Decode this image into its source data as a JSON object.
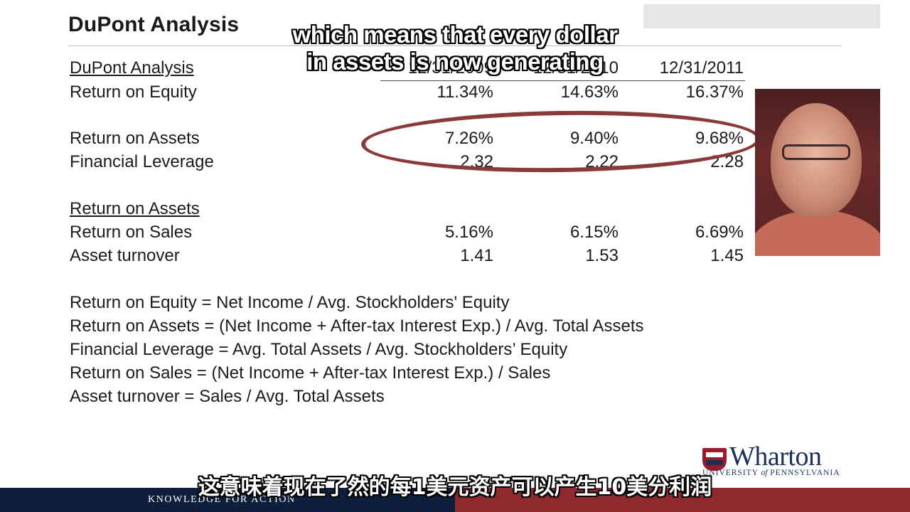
{
  "slide": {
    "title": "DuPont Analysis"
  },
  "table": {
    "section1_header": "DuPont Analysis",
    "col_headers": [
      "12/31/2009",
      "12/31/2010",
      "12/31/2011"
    ],
    "rows_part1": [
      {
        "label": "Return on Equity",
        "values": [
          "11.34%",
          "14.63%",
          "16.37%"
        ]
      },
      {
        "label": "Return on Assets",
        "values": [
          "7.26%",
          "9.40%",
          "9.68%"
        ]
      },
      {
        "label": "Financial Leverage",
        "values": [
          "2.32",
          "2.22",
          "2.28"
        ]
      }
    ],
    "section2_header": "Return on Assets",
    "rows_part2": [
      {
        "label": "Return on Sales",
        "values": [
          "5.16%",
          "6.15%",
          "6.69%"
        ]
      },
      {
        "label": "Asset turnover",
        "values": [
          "1.41",
          "1.53",
          "1.45"
        ]
      }
    ]
  },
  "formulas": [
    "Return on Equity = Net Income / Avg. Stockholders' Equity",
    "Return on Assets = (Net Income + After-tax Interest Exp.) / Avg. Total Assets",
    "Financial Leverage = Avg. Total Assets / Avg. Stockholders’ Equity",
    "Return on Sales =  (Net Income + After-tax Interest Exp.) / Sales",
    "Asset turnover = Sales / Avg. Total Assets"
  ],
  "subtitles": {
    "english_line1": "which means that every dollar",
    "english_line2": "in assets is now generating",
    "chinese": "这意味着现在了然的每1美元资产可以产生10美分利润"
  },
  "footer": {
    "tagline": "KNOWLEDGE FOR ACTION",
    "logo_word": "Wharton",
    "logo_sub_pre": "UNIVERSITY ",
    "logo_sub_of": "of",
    "logo_sub_post": " PENNSYLVANIA"
  },
  "colors": {
    "highlight_ellipse": "#8b3a3a",
    "footer_navy": "#0d1f3c",
    "footer_red": "#8e2a2e",
    "wharton_blue": "#1b2f5a"
  }
}
